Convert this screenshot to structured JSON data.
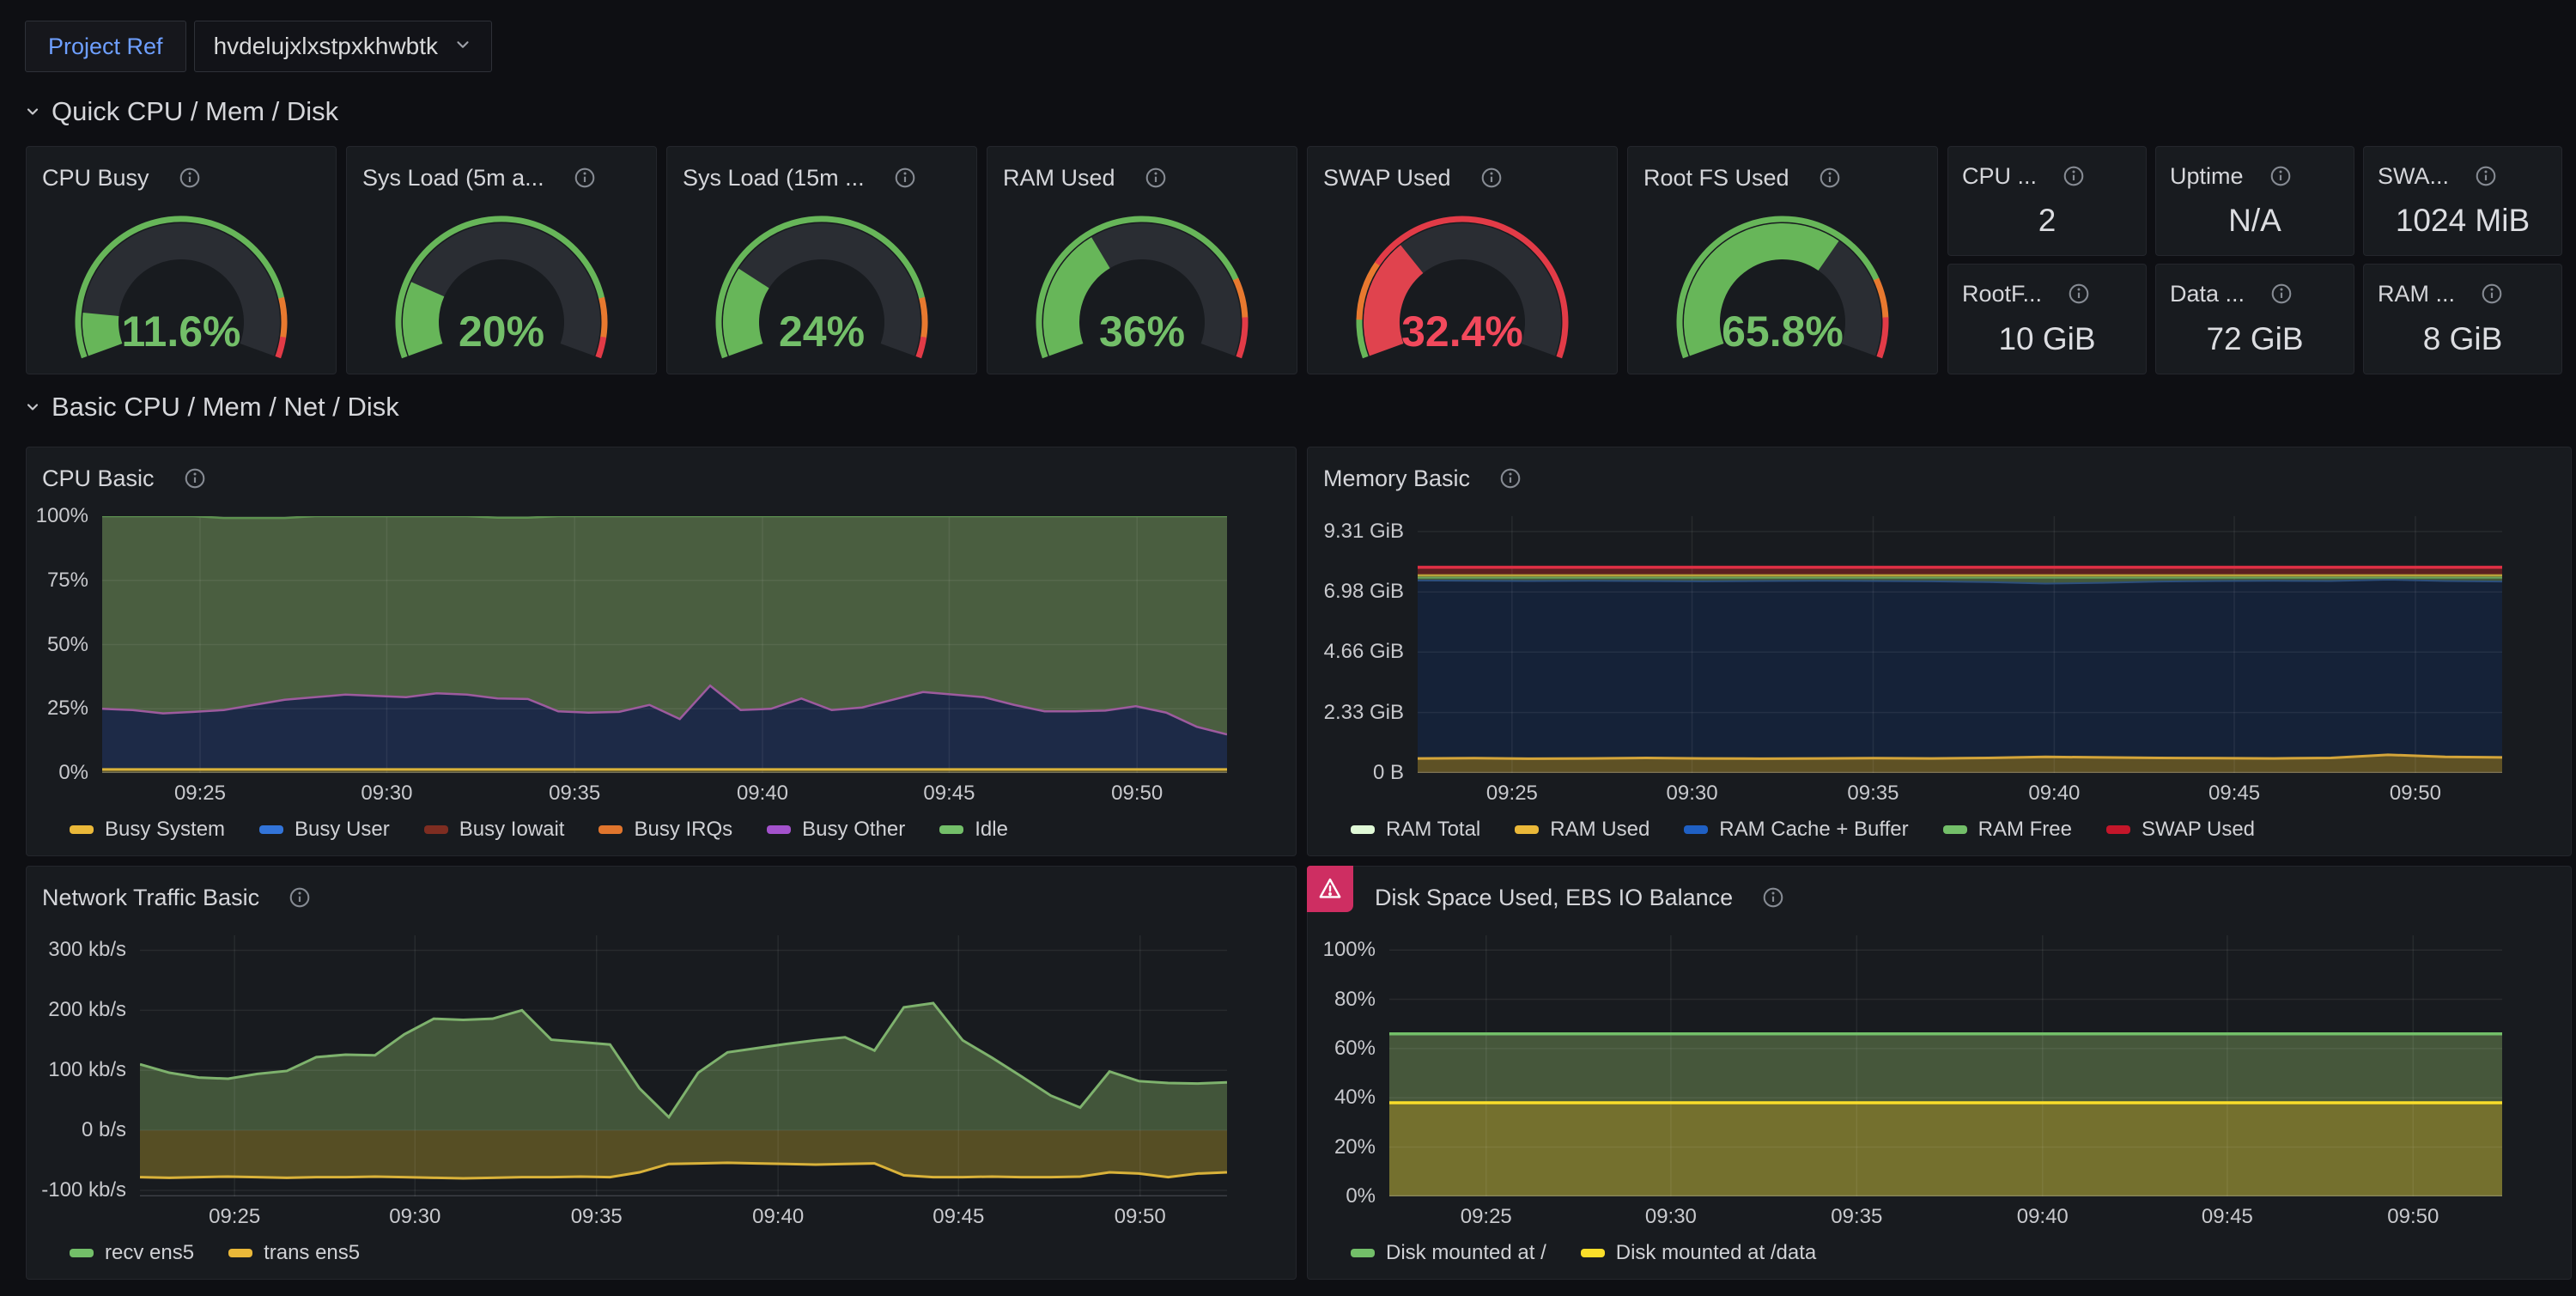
{
  "header": {
    "variable_label": "Project Ref",
    "variable_value": "hvdelujxlxstpxkhwbtk"
  },
  "sections": [
    {
      "title": "Quick CPU / Mem / Disk"
    },
    {
      "title": "Basic CPU / Mem / Net / Disk"
    }
  ],
  "gauges": [
    {
      "title": "CPU Busy",
      "value_text": "11.6%",
      "value": 0.116,
      "fill_color": "#67b659",
      "value_color": "#73bf69",
      "thresholds": [
        {
          "to": 0.85,
          "color": "#67b659"
        },
        {
          "to": 0.95,
          "color": "#e8792f"
        },
        {
          "to": 1.0,
          "color": "#e23b47"
        }
      ]
    },
    {
      "title": "Sys Load (5m a...",
      "value_text": "20%",
      "value": 0.2,
      "fill_color": "#67b659",
      "value_color": "#73bf69",
      "thresholds": [
        {
          "to": 0.85,
          "color": "#67b659"
        },
        {
          "to": 0.95,
          "color": "#e8792f"
        },
        {
          "to": 1.0,
          "color": "#e23b47"
        }
      ]
    },
    {
      "title": "Sys Load (15m ...",
      "value_text": "24%",
      "value": 0.24,
      "fill_color": "#67b659",
      "value_color": "#73bf69",
      "thresholds": [
        {
          "to": 0.85,
          "color": "#67b659"
        },
        {
          "to": 0.95,
          "color": "#e8792f"
        },
        {
          "to": 1.0,
          "color": "#e23b47"
        }
      ]
    },
    {
      "title": "RAM Used",
      "value_text": "36%",
      "value": 0.36,
      "fill_color": "#67b659",
      "value_color": "#73bf69",
      "thresholds": [
        {
          "to": 0.8,
          "color": "#67b659"
        },
        {
          "to": 0.9,
          "color": "#e8792f"
        },
        {
          "to": 1.0,
          "color": "#e23b47"
        }
      ]
    },
    {
      "title": "SWAP Used",
      "value_text": "32.4%",
      "value": 0.324,
      "fill_color": "#e0434e",
      "value_color": "#f2495c",
      "thresholds": [
        {
          "to": 0.1,
          "color": "#67b659"
        },
        {
          "to": 0.25,
          "color": "#e8792f"
        },
        {
          "to": 1.0,
          "color": "#e23b47"
        }
      ]
    },
    {
      "title": "Root FS Used",
      "value_text": "65.8%",
      "value": 0.658,
      "fill_color": "#67b659",
      "value_color": "#73bf69",
      "thresholds": [
        {
          "to": 0.8,
          "color": "#67b659"
        },
        {
          "to": 0.9,
          "color": "#e8792f"
        },
        {
          "to": 1.0,
          "color": "#e23b47"
        }
      ]
    }
  ],
  "stats": [
    {
      "title": "CPU ...",
      "value": "2"
    },
    {
      "title": "Uptime",
      "value": "N/A"
    },
    {
      "title": "SWA...",
      "value": "1024 MiB"
    },
    {
      "title": "RootF...",
      "value": "10 GiB"
    },
    {
      "title": "Data ...",
      "value": "72 GiB"
    },
    {
      "title": "RAM ...",
      "value": "8 GiB"
    }
  ],
  "chart_data": {
    "cpu_basic": {
      "type": "area",
      "title": "CPU Basic",
      "y_min": 0,
      "y_max": 100,
      "gutter": 88,
      "y_ticks": [
        {
          "v": 100,
          "label": "100%"
        },
        {
          "v": 75,
          "label": "75%"
        },
        {
          "v": 50,
          "label": "50%"
        },
        {
          "v": 25,
          "label": "25%"
        },
        {
          "v": 0,
          "label": "0%"
        }
      ],
      "x_ticks": [
        {
          "p": 0.087,
          "label": "09:25"
        },
        {
          "p": 0.253,
          "label": "09:30"
        },
        {
          "p": 0.42,
          "label": "09:35"
        },
        {
          "p": 0.587,
          "label": "09:40"
        },
        {
          "p": 0.753,
          "label": "09:45"
        },
        {
          "p": 0.92,
          "label": "09:50"
        }
      ],
      "series": [
        {
          "name": "Idle",
          "line": "#5d9150",
          "line_w": 2.5,
          "fill": "#4a5e40",
          "values": [
            100,
            100,
            100,
            100,
            99.3,
            99.3,
            99.3,
            100,
            100,
            100,
            100,
            100,
            100,
            99.4,
            99.4,
            100,
            100,
            100,
            100,
            100,
            100,
            100,
            100,
            100,
            100,
            100,
            100,
            100,
            100,
            100,
            100,
            100,
            100,
            100,
            100,
            100,
            100,
            100
          ]
        },
        {
          "name": "Busy User",
          "line": "#9d5b9e",
          "line_w": 2.5,
          "fill": "#1d2a47",
          "values": [
            25,
            24.5,
            23.2,
            23.8,
            24.5,
            26.5,
            28.5,
            29.5,
            30.5,
            30,
            29.5,
            31,
            30.5,
            29,
            28.8,
            24,
            23.5,
            23.8,
            26.5,
            21,
            34,
            24.5,
            25,
            29,
            24.5,
            25.5,
            28.5,
            31.5,
            30.5,
            29.5,
            26.5,
            24,
            24,
            24.3,
            26,
            23.5,
            18,
            15
          ]
        },
        {
          "name": "Busy System",
          "line": "#d9b23a",
          "line_w": 3,
          "fill": "#55502a",
          "values": [
            1.4,
            1.4
          ]
        }
      ],
      "legend": [
        {
          "label": "Busy System",
          "color": "#eab839"
        },
        {
          "label": "Busy User",
          "color": "#3274d9"
        },
        {
          "label": "Busy Iowait",
          "color": "#7e2d21"
        },
        {
          "label": "Busy IRQs",
          "color": "#e0752d"
        },
        {
          "label": "Busy Other",
          "color": "#a352cc"
        },
        {
          "label": "Idle",
          "color": "#73bf69"
        }
      ]
    },
    "memory_basic": {
      "type": "area",
      "title": "Memory Basic",
      "y_min": 0,
      "y_max": 9.9,
      "gutter": 128,
      "y_ticks": [
        {
          "v": 9.31,
          "label": "9.31 GiB"
        },
        {
          "v": 6.98,
          "label": "6.98 GiB"
        },
        {
          "v": 4.66,
          "label": "4.66 GiB"
        },
        {
          "v": 2.33,
          "label": "2.33 GiB"
        },
        {
          "v": 0,
          "label": "0 B"
        }
      ],
      "x_ticks": [
        {
          "p": 0.087,
          "label": "09:25"
        },
        {
          "p": 0.253,
          "label": "09:30"
        },
        {
          "p": 0.42,
          "label": "09:35"
        },
        {
          "p": 0.587,
          "label": "09:40"
        },
        {
          "p": 0.753,
          "label": "09:45"
        },
        {
          "p": 0.92,
          "label": "09:50"
        }
      ],
      "series": [
        {
          "name": "SWAP Used",
          "line": "#e02f44",
          "line_w": 3.5,
          "fill": "#5c2020",
          "values": [
            7.93,
            7.93
          ]
        },
        {
          "name": "RAM Total",
          "line": "#b7a23a",
          "line_w": 2.5,
          "fill": "#6d6330",
          "values": [
            7.62,
            7.62
          ]
        },
        {
          "name": "RAM Free",
          "line": "#6aa45c",
          "line_w": 2,
          "fill": "#44593c",
          "values": [
            7.53,
            7.53
          ]
        },
        {
          "name": "RAM Cache + Buffer",
          "line": "#2d4f7c",
          "line_w": 2,
          "fill": "#152238",
          "values": [
            7.42,
            7.41,
            7.4,
            7.41,
            7.4,
            7.39,
            7.4,
            7.41,
            7.4,
            7.39,
            7.36,
            7.3,
            7.33,
            7.38,
            7.4,
            7.41,
            7.4,
            7.45,
            7.4,
            7.38
          ]
        },
        {
          "name": "RAM Used",
          "line": "#d4a53a",
          "line_w": 3,
          "fill": "#5e5125",
          "values": [
            0.56,
            0.57,
            0.55,
            0.56,
            0.58,
            0.56,
            0.55,
            0.56,
            0.57,
            0.56,
            0.58,
            0.62,
            0.6,
            0.58,
            0.57,
            0.56,
            0.58,
            0.7,
            0.62,
            0.6
          ]
        }
      ],
      "legend": [
        {
          "label": "RAM Total",
          "color": "#e0f9d7"
        },
        {
          "label": "RAM Used",
          "color": "#eab839"
        },
        {
          "label": "RAM Cache + Buffer",
          "color": "#1f60c4"
        },
        {
          "label": "RAM Free",
          "color": "#73bf69"
        },
        {
          "label": "SWAP Used",
          "color": "#c4162a"
        }
      ]
    },
    "network_basic": {
      "type": "area",
      "title": "Network Traffic Basic",
      "y_min": -110,
      "y_max": 325,
      "gutter": 132,
      "y_ticks": [
        {
          "v": 300,
          "label": "300 kb/s"
        },
        {
          "v": 200,
          "label": "200 kb/s"
        },
        {
          "v": 100,
          "label": "100 kb/s"
        },
        {
          "v": 0,
          "label": "0 b/s"
        },
        {
          "v": -100,
          "label": "-100 kb/s"
        }
      ],
      "x_ticks": [
        {
          "p": 0.087,
          "label": "09:25"
        },
        {
          "p": 0.253,
          "label": "09:30"
        },
        {
          "p": 0.42,
          "label": "09:35"
        },
        {
          "p": 0.587,
          "label": "09:40"
        },
        {
          "p": 0.753,
          "label": "09:45"
        },
        {
          "p": 0.92,
          "label": "09:50"
        }
      ],
      "series": [
        {
          "name": "recv ens5",
          "line": "#7eb26d",
          "line_w": 3,
          "fill": "#42553a",
          "values": [
            110,
            96,
            88,
            86,
            94,
            99,
            122,
            126,
            125,
            160,
            186,
            184,
            186,
            200,
            151,
            147,
            143,
            70,
            22,
            96,
            130,
            137,
            144,
            150,
            155,
            133,
            205,
            212,
            150,
            121,
            90,
            58,
            38,
            98,
            82,
            79,
            78,
            80
          ]
        },
        {
          "name": "trans ens5",
          "line": "#d9b23a",
          "line_w": 3,
          "fill": "#564e24",
          "values": [
            -78,
            -79,
            -78,
            -77,
            -78,
            -79,
            -78,
            -78,
            -77,
            -78,
            -79,
            -80,
            -79,
            -78,
            -78,
            -77,
            -78,
            -70,
            -56,
            -55,
            -54,
            -55,
            -56,
            -57,
            -56,
            -55,
            -75,
            -78,
            -78,
            -77,
            -78,
            -78,
            -77,
            -70,
            -72,
            -78,
            -72,
            -70
          ]
        }
      ],
      "legend": [
        {
          "label": "recv ens5",
          "color": "#73bf69"
        },
        {
          "label": "trans ens5",
          "color": "#eab839"
        }
      ]
    },
    "disk_basic": {
      "type": "area",
      "title": "Disk Space Used, EBS IO Balance",
      "alert": true,
      "y_min": 0,
      "y_max": 106,
      "gutter": 95,
      "y_ticks": [
        {
          "v": 100,
          "label": "100%"
        },
        {
          "v": 80,
          "label": "80%"
        },
        {
          "v": 60,
          "label": "60%"
        },
        {
          "v": 40,
          "label": "40%"
        },
        {
          "v": 20,
          "label": "20%"
        },
        {
          "v": 0,
          "label": "0%"
        }
      ],
      "x_ticks": [
        {
          "p": 0.087,
          "label": "09:25"
        },
        {
          "p": 0.253,
          "label": "09:30"
        },
        {
          "p": 0.42,
          "label": "09:35"
        },
        {
          "p": 0.587,
          "label": "09:40"
        },
        {
          "p": 0.753,
          "label": "09:45"
        },
        {
          "p": 0.92,
          "label": "09:50"
        }
      ],
      "series": [
        {
          "name": "Disk mounted at /",
          "line": "#73bf69",
          "line_w": 3.5,
          "fill": "#46573b",
          "values": [
            66,
            66
          ]
        },
        {
          "name": "Disk mounted at /data",
          "line": "#fade2a",
          "line_w": 3.5,
          "fill": "#74702e",
          "values": [
            38,
            38
          ]
        }
      ],
      "legend": [
        {
          "label": "Disk mounted at /",
          "color": "#73bf69"
        },
        {
          "label": "Disk mounted at /data",
          "color": "#fade2a"
        }
      ]
    }
  }
}
